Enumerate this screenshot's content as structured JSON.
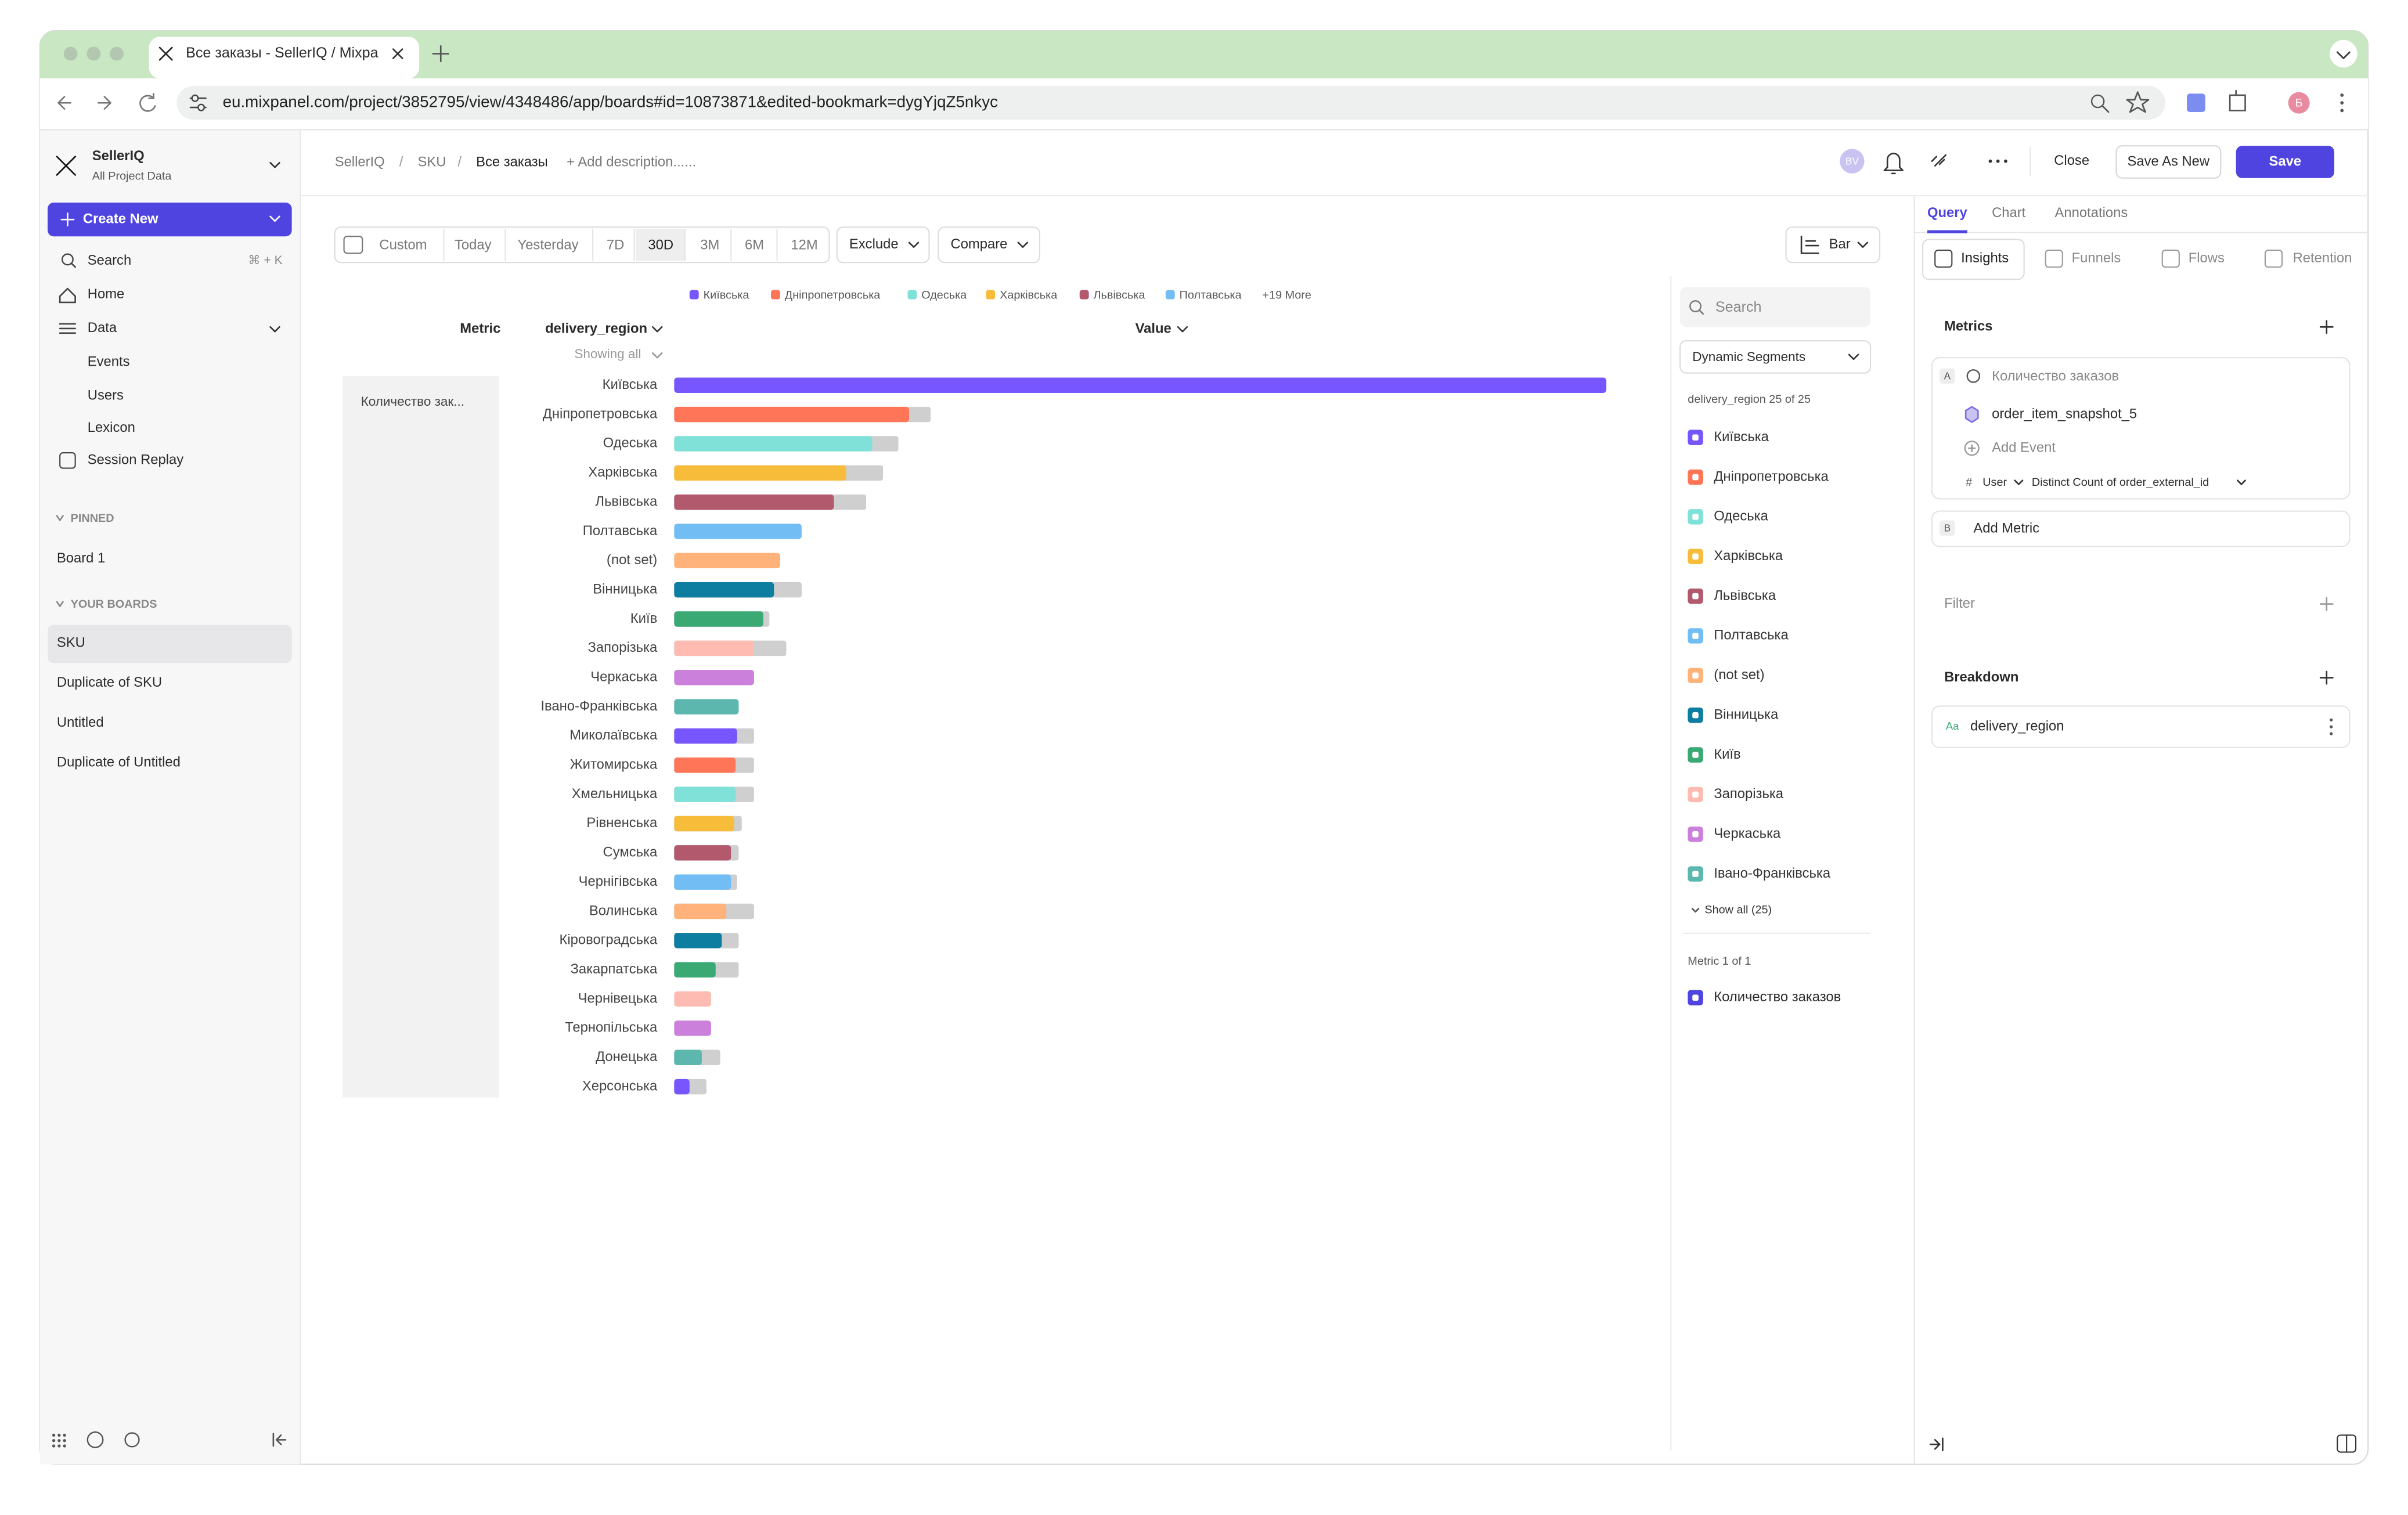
{
  "browser": {
    "tab_title": "Все заказы - SellerIQ / Mixpa",
    "url": "eu.mixpanel.com/project/3852795/view/4348486/app/boards#id=10873871&edited-bookmark=dygYjqZ5nkyc",
    "profile_initial": "Б"
  },
  "sidebar": {
    "project": "SellerIQ",
    "scope": "All Project Data",
    "create": "Create New",
    "search": "Search",
    "shortcut": "⌘ + K",
    "nav": [
      "Home",
      "Data"
    ],
    "data_items": [
      "Events",
      "Users",
      "Lexicon"
    ],
    "replay": "Session Replay",
    "pinned_heading": "PINNED",
    "pinned": [
      "Board 1"
    ],
    "boards_heading": "YOUR BOARDS",
    "boards": [
      "SKU",
      "Duplicate of SKU",
      "Untitled",
      "Duplicate of Untitled"
    ]
  },
  "header": {
    "breadcrumbs": [
      "SellerIQ",
      "SKU",
      "Все заказы"
    ],
    "separator": "/",
    "add_description": "+ Add description......",
    "avatar": "BV",
    "close": "Close",
    "save_as_new": "Save As New",
    "save": "Save"
  },
  "toolbar": {
    "date_ranges": [
      "Custom",
      "Today",
      "Yesterday",
      "7D",
      "30D",
      "3M",
      "6M",
      "12M"
    ],
    "selected_range": 4,
    "exclude": "Exclude",
    "compare": "Compare",
    "chart_type_button": "Bar"
  },
  "table": {
    "metric_header": "Metric",
    "breakdown_header": "delivery_region",
    "value_header": "Value",
    "showing": "Showing all",
    "metric": "Количество зак..."
  },
  "chart_data": {
    "type": "bar",
    "categories": [
      "Київська",
      "Дніпропетровська",
      "Одеська",
      "Харківська",
      "Львівська",
      "Полтавська",
      "(not set)",
      "Вінницька",
      "Київ",
      "Запорізька",
      "Черкаська",
      "Івано-Франківська",
      "Миколаївська",
      "Житомирська",
      "Хмельницька",
      "Рівненська",
      "Сумська",
      "Чернігівська",
      "Волинська",
      "Кіровоградська",
      "Закарпатська",
      "Чернівецька",
      "Тернопільська",
      "Донецька",
      "Херсонська"
    ],
    "values": [
      607,
      153,
      129,
      112,
      104,
      83,
      69,
      65,
      58,
      52,
      52,
      42,
      41,
      40,
      40,
      39,
      37,
      37,
      34,
      31,
      27,
      24,
      24,
      18,
      10
    ],
    "compare_values": [
      null,
      167,
      146,
      136,
      125,
      null,
      null,
      83,
      62,
      73,
      null,
      null,
      52,
      52,
      52,
      44,
      42,
      41,
      52,
      42,
      42,
      null,
      null,
      30,
      21
    ],
    "colors": [
      "#7856ff",
      "#ff7557",
      "#80e1d9",
      "#f8bc3b",
      "#b2596e",
      "#72bef4",
      "#ffb27a",
      "#0d7ea0",
      "#3ba974",
      "#febbb2",
      "#cb80dc",
      "#5cb7af"
    ],
    "legend_more": "+19 More"
  },
  "segments": {
    "search": "Search",
    "mode": "Dynamic Segments",
    "count_label": "delivery_region 25 of 25",
    "show_all": "Show all (25)",
    "metric_count": "Metric 1 of 1",
    "metric": "Количество заказов"
  },
  "query": {
    "tabs": [
      "Query",
      "Chart",
      "Annotations"
    ],
    "report_types": [
      "Insights",
      "Funnels",
      "Flows",
      "Retention"
    ],
    "metrics_heading": "Metrics",
    "metric_a": {
      "letter": "A",
      "name": "Количество заказов",
      "event": "order_item_snapshot_5",
      "add_event": "Add Event",
      "hash": "#",
      "scope": "User",
      "aggregation": "Distinct Count of order_external_id"
    },
    "metric_b": {
      "letter": "B",
      "name": "Add Metric"
    },
    "filter": "Filter",
    "breakdown_heading": "Breakdown",
    "breakdown": {
      "icon": "Aa",
      "name": "delivery_region"
    }
  }
}
